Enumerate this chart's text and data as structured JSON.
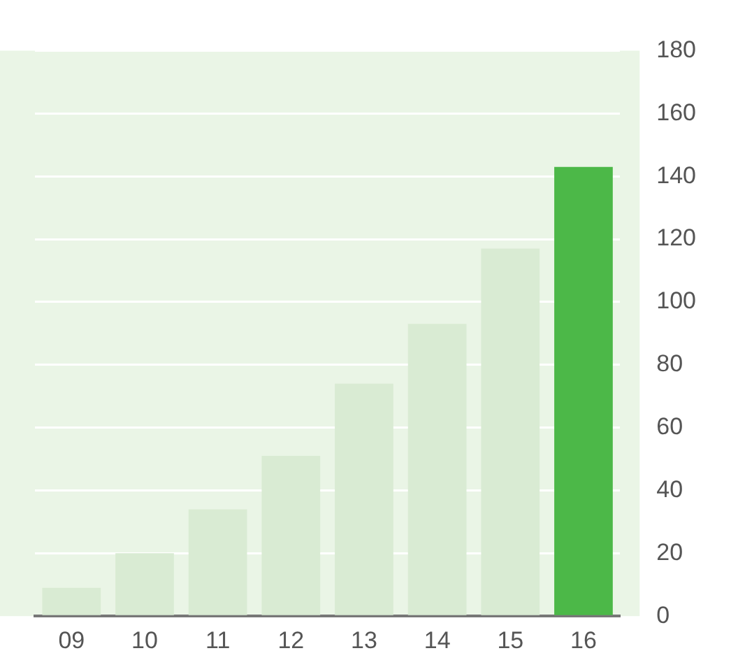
{
  "chart_data": {
    "type": "bar",
    "categories": [
      "09",
      "10",
      "11",
      "12",
      "13",
      "14",
      "15",
      "16"
    ],
    "values": [
      9,
      20,
      34,
      51,
      74,
      93,
      117,
      143
    ],
    "colors": [
      "#d9ebd3",
      "#d9ebd3",
      "#d9ebd3",
      "#d9ebd3",
      "#d9ebd3",
      "#d9ebd3",
      "#d9ebd3",
      "#4cb848"
    ],
    "ylim": [
      0,
      180
    ],
    "yticks": [
      0,
      20,
      40,
      60,
      80,
      100,
      120,
      140,
      160,
      180
    ],
    "grid": "y",
    "legend": false
  }
}
